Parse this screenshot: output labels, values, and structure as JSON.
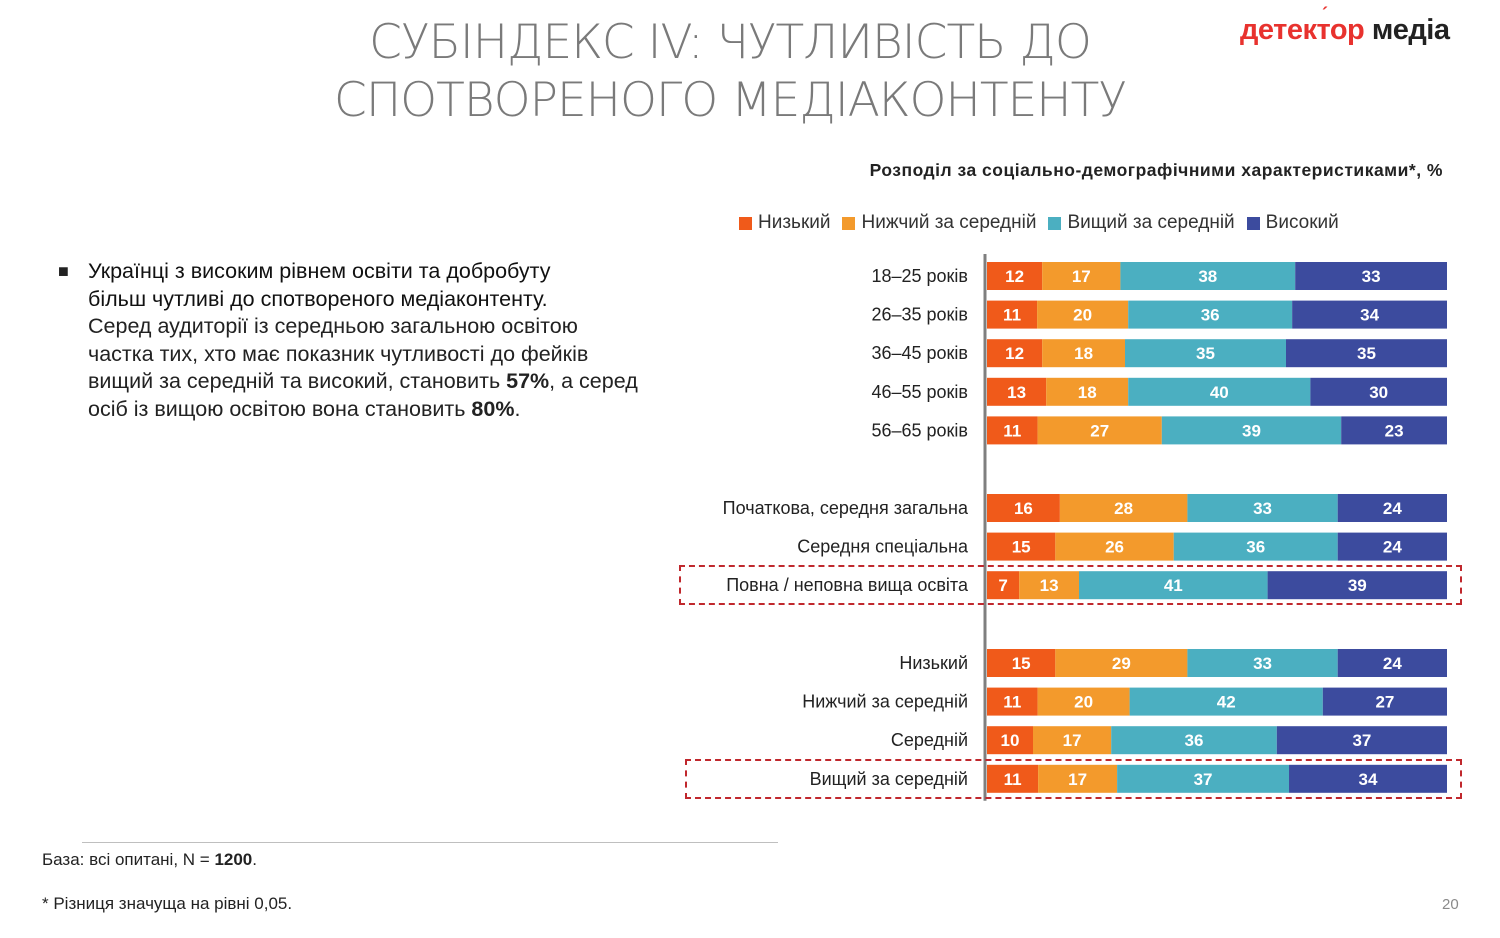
{
  "header": {
    "title_line1": "СУБІНДЕКС IV: ЧУТЛИВІСТЬ ДО",
    "title_line2": "СПОТВОРЕНОГО МЕДІАКОНТЕНТУ",
    "logo_part1": "детектор",
    "logo_part2": "медіа"
  },
  "bullet": {
    "marker": "■",
    "bold_line1": "Українці з високим рівнем освіти та добробуту",
    "bold_line2": "більш чутливі до спотвореного медіаконтенту.",
    "text_part1": "Серед аудиторії із середньою загальною освітою частка тих, хто має показник чутливості до фейків вищий за середній та високий, становить ",
    "value1": "57%",
    "text_part2": ", а серед осіб із вищою освітою вона становить ",
    "value2": "80%",
    "text_part3": "."
  },
  "footer": {
    "base_prefix": "База: всі опитані, N = ",
    "base_n": "1200",
    "base_suffix": ".",
    "note": "* Різниця значуща на рівні 0,05.",
    "page": "20"
  },
  "colors": {
    "low": "#f05a1a",
    "below_avg": "#f39a2c",
    "above_avg": "#4bafc1",
    "high": "#3c4b9e",
    "highlight": "#c0282d"
  },
  "chart_data": {
    "type": "bar",
    "orientation": "horizontal",
    "stacked": true,
    "title": "Розподіл за соціально-демографічними характеристиками*, %",
    "xlim": [
      0,
      100
    ],
    "legend_position": "top",
    "series_names": [
      "Низький",
      "Нижчий за середній",
      "Вищий за середній",
      "Високий"
    ],
    "groups": [
      {
        "categories": [
          "18–25 років",
          "26–35 років",
          "36–45 років",
          "46–55 років",
          "56–65 років"
        ],
        "values": [
          [
            12,
            17,
            38,
            33
          ],
          [
            11,
            20,
            36,
            34
          ],
          [
            12,
            18,
            35,
            35
          ],
          [
            13,
            18,
            40,
            30
          ],
          [
            11,
            27,
            39,
            23
          ]
        ],
        "highlighted": []
      },
      {
        "categories": [
          "Початкова, середня загальна",
          "Середня спеціальна",
          "Повна / неповна вища освіта"
        ],
        "values": [
          [
            16,
            28,
            33,
            24
          ],
          [
            15,
            26,
            36,
            24
          ],
          [
            7,
            13,
            41,
            39
          ]
        ],
        "highlighted": [
          2
        ]
      },
      {
        "categories": [
          "Низький",
          "Нижчий за середній",
          "Середній",
          "Вищий за середній"
        ],
        "values": [
          [
            15,
            29,
            33,
            24
          ],
          [
            11,
            20,
            42,
            27
          ],
          [
            10,
            17,
            36,
            37
          ],
          [
            11,
            17,
            37,
            34
          ]
        ],
        "highlighted": [
          3
        ]
      }
    ]
  }
}
